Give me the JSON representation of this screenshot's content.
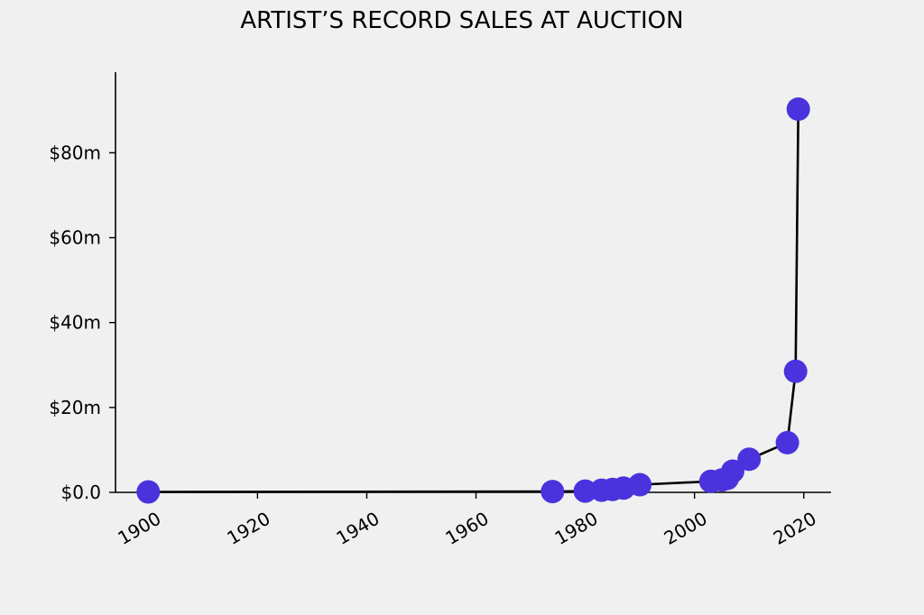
{
  "chart_data": {
    "type": "line",
    "title": "ARTIST’S RECORD SALES AT AUCTION",
    "xlabel": "",
    "ylabel": "",
    "xlim": [
      1894,
      2025
    ],
    "ylim": [
      0,
      99
    ],
    "x_ticks": [
      1900,
      1920,
      1940,
      1960,
      1980,
      2000,
      2020
    ],
    "y_ticks": [
      0,
      20,
      40,
      60,
      80
    ],
    "y_tick_labels": [
      "$0.0",
      "$20m",
      "$40m",
      "$60m",
      "$80m"
    ],
    "grid": false,
    "colors": {
      "marker": "#4a33dd",
      "line": "#000000"
    },
    "series": [
      {
        "x": [
          1900,
          1974,
          1980,
          1983,
          1985,
          1987,
          1990,
          2003,
          2005,
          2006,
          2007,
          2010,
          2017,
          2018.5,
          2019
        ],
        "y": [
          0.1,
          0.2,
          0.3,
          0.5,
          0.7,
          1.0,
          1.8,
          2.6,
          2.9,
          3.3,
          5.0,
          7.8,
          11.7,
          28.5,
          90.3
        ]
      }
    ]
  }
}
